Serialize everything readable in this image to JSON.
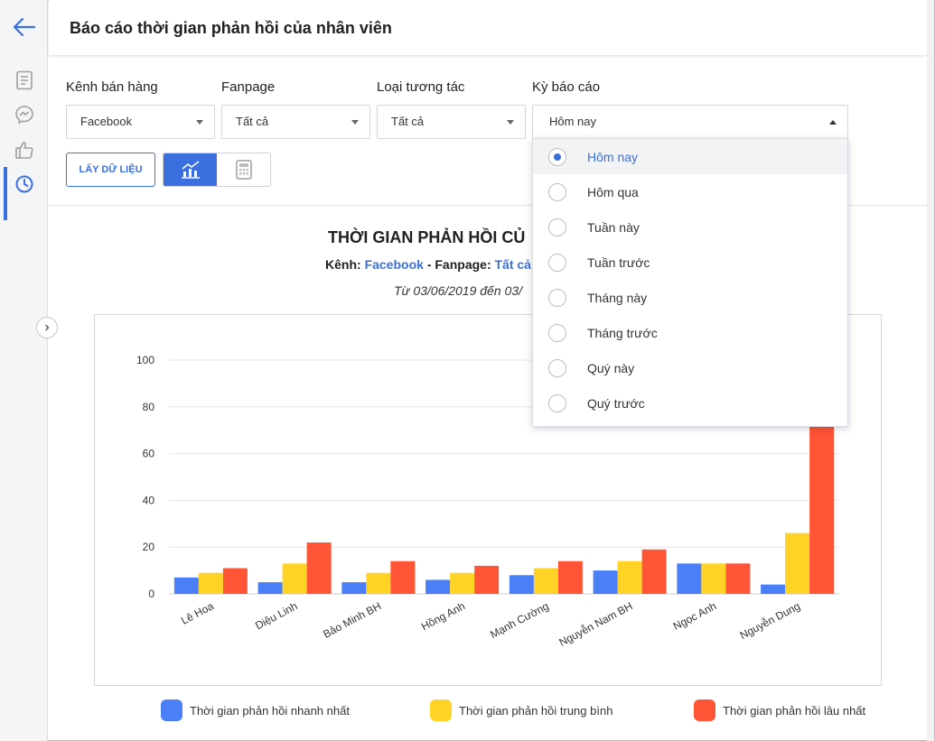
{
  "header": {
    "title": "Báo cáo thời gian phản hồi của nhân viên"
  },
  "sidebar": {
    "icons": [
      "back-arrow-icon",
      "document-icon",
      "messenger-icon",
      "thumbs-up-icon",
      "clock-icon"
    ],
    "expand_icon": "chevron-right-icon"
  },
  "filters": {
    "channel": {
      "label": "Kênh bán hàng",
      "value": "Facebook"
    },
    "fanpage": {
      "label": "Fanpage",
      "value": "Tất cả"
    },
    "interaction": {
      "label": "Loại tương tác",
      "value": "Tất cả"
    },
    "period": {
      "label": "Kỳ báo cáo",
      "value": "Hôm nay"
    }
  },
  "toolbar": {
    "get_data_label": "LẤY DỮ LIỆU",
    "chart_view_icon": "chart-icon",
    "table_view_icon": "calculator-icon"
  },
  "period_dropdown": {
    "selected_index": 0,
    "options": [
      "Hôm nay",
      "Hôm qua",
      "Tuần này",
      "Tuần trước",
      "Tháng này",
      "Tháng trước",
      "Quý này",
      "Quý trước"
    ]
  },
  "report": {
    "title": "THỜI GIAN PHẢN HỒI CỦ",
    "channel_label": "Kênh:",
    "channel_value": "Facebook",
    "separator": "-",
    "fanpage_label": "Fanpage:",
    "fanpage_value": "Tất cả",
    "date_range": "Từ 03/06/2019 đến 03/"
  },
  "chart_data": {
    "type": "bar",
    "categories": [
      "Lê Hoa",
      "Diệu Linh",
      "Bảo Minh BH",
      "Hồng Anh",
      "Mạnh Cường",
      "Nguyễn Nam BH",
      "Ngọc Anh",
      "Nguyễn Dung"
    ],
    "series": [
      {
        "name": "Thời gian phản hồi nhanh nhất",
        "color": "#4a7ff7",
        "values": [
          7,
          5,
          5,
          6,
          8,
          10,
          13,
          4
        ]
      },
      {
        "name": "Thời gian phản hồi trung bình",
        "color": "#ffd326",
        "values": [
          9,
          13,
          9,
          9,
          11,
          14,
          13,
          26
        ]
      },
      {
        "name": "Thời gian phản hồi lâu nhất",
        "color": "#ff5436",
        "values": [
          11,
          22,
          14,
          12,
          14,
          19,
          13,
          72
        ]
      }
    ],
    "y_ticks": [
      "0",
      "20",
      "40",
      "60",
      "80",
      "100"
    ],
    "ylim": [
      0,
      100
    ],
    "grid": true,
    "legend_position": "bottom"
  }
}
